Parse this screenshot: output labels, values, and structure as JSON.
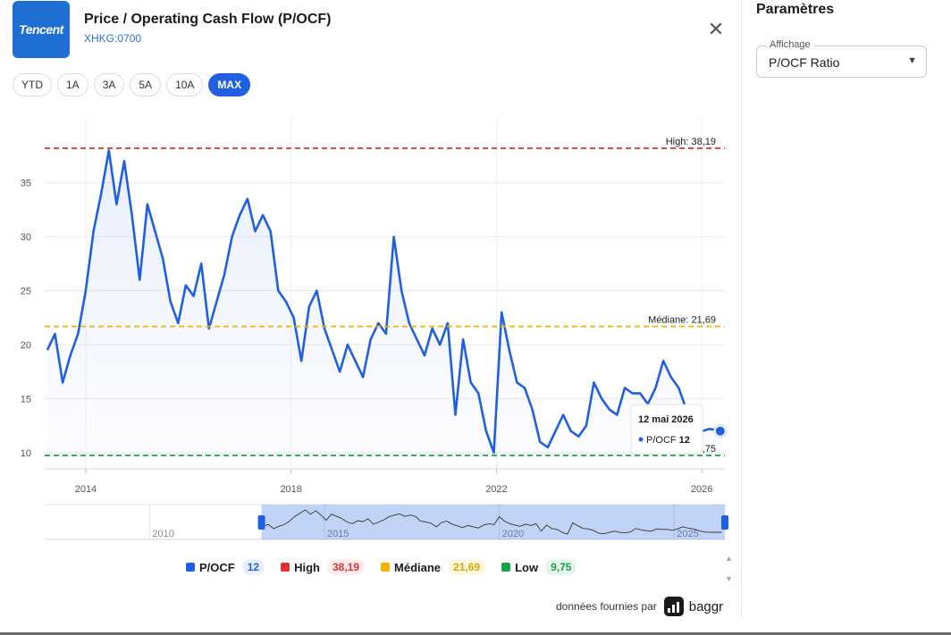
{
  "header": {
    "logo_text": "Tencent",
    "title": "Price / Operating Cash Flow (P/OCF)",
    "ticker": "XHKG:0700",
    "close_icon": "close-icon"
  },
  "ranges": [
    {
      "label": "YTD",
      "active": false
    },
    {
      "label": "1A",
      "active": false
    },
    {
      "label": "3A",
      "active": false
    },
    {
      "label": "5A",
      "active": false
    },
    {
      "label": "10A",
      "active": false
    },
    {
      "label": "MAX",
      "active": true
    }
  ],
  "chart_data": {
    "type": "area",
    "title": "",
    "xlabel": "",
    "ylabel": "",
    "xlim": [
      2013.2,
      2026.45
    ],
    "ylim": [
      8.5,
      41
    ],
    "x_ticks": [
      "2014",
      "2018",
      "2022",
      "2026"
    ],
    "y_ticks": [
      10,
      15,
      20,
      25,
      30,
      35
    ],
    "grid": true,
    "series": [
      {
        "name": "P/OCF",
        "color": "#2060e0",
        "x": [
          2013.25,
          2013.4,
          2013.55,
          2013.7,
          2013.85,
          2014.0,
          2014.15,
          2014.3,
          2014.45,
          2014.6,
          2014.75,
          2014.9,
          2015.05,
          2015.2,
          2015.35,
          2015.5,
          2015.65,
          2015.8,
          2015.95,
          2016.1,
          2016.25,
          2016.4,
          2016.55,
          2016.7,
          2016.85,
          2017.0,
          2017.15,
          2017.3,
          2017.45,
          2017.6,
          2017.75,
          2017.9,
          2018.05,
          2018.2,
          2018.35,
          2018.5,
          2018.65,
          2018.8,
          2018.95,
          2019.1,
          2019.25,
          2019.4,
          2019.55,
          2019.7,
          2019.85,
          2020.0,
          2020.15,
          2020.3,
          2020.45,
          2020.6,
          2020.75,
          2020.9,
          2021.05,
          2021.2,
          2021.35,
          2021.5,
          2021.65,
          2021.8,
          2021.95,
          2022.1,
          2022.25,
          2022.4,
          2022.55,
          2022.7,
          2022.85,
          2023.0,
          2023.15,
          2023.3,
          2023.45,
          2023.6,
          2023.75,
          2023.9,
          2024.05,
          2024.2,
          2024.35,
          2024.5,
          2024.65,
          2024.8,
          2024.95,
          2025.1,
          2025.25,
          2025.4,
          2025.55,
          2025.7,
          2025.85,
          2026.0,
          2026.15,
          2026.3,
          2026.36
        ],
        "y": [
          19.5,
          21.0,
          16.5,
          19.0,
          21.0,
          25.0,
          30.5,
          34.0,
          38.0,
          33.0,
          37.0,
          32.0,
          26.0,
          33.0,
          30.5,
          28.0,
          24.0,
          22.0,
          25.5,
          24.5,
          27.5,
          21.5,
          24.0,
          26.5,
          30.0,
          32.0,
          33.5,
          30.5,
          32.0,
          30.5,
          25.0,
          24.0,
          22.5,
          18.5,
          23.5,
          25.0,
          21.5,
          19.5,
          17.5,
          20.0,
          18.5,
          17.0,
          20.5,
          22.0,
          21.0,
          30.0,
          25.0,
          22.0,
          20.5,
          19.0,
          21.5,
          20.0,
          22.0,
          13.5,
          20.5,
          16.5,
          15.5,
          12.0,
          10.0,
          23.0,
          19.5,
          16.5,
          16.0,
          14.0,
          11.0,
          10.5,
          12.0,
          13.5,
          12.0,
          11.5,
          12.5,
          16.5,
          15.0,
          14.0,
          13.5,
          16.0,
          15.5,
          15.5,
          14.5,
          16.0,
          18.5,
          17.0,
          16.0,
          14.0,
          12.5,
          12.0,
          12.2,
          12.1,
          12.0
        ]
      }
    ],
    "reference_lines": [
      {
        "name": "High",
        "value": 38.19,
        "label": "High: 38,19",
        "color": "#e03131"
      },
      {
        "name": "Médiane",
        "value": 21.69,
        "label": "Médiane: 21,69",
        "color": "#f0b400"
      },
      {
        "name": "Low",
        "value": 9.75,
        "label": "Low: 9,75",
        "color": "#16a34a"
      }
    ],
    "tooltip": {
      "date": "12 mai 2026",
      "series": "P/OCF",
      "value": "12"
    },
    "navigator": {
      "x_ticks": [
        "2010",
        "2015",
        "2020",
        "2025"
      ],
      "selected_range": [
        2013.2,
        2026.45
      ],
      "full_range": [
        2007.0,
        2026.45
      ]
    }
  },
  "legend": [
    {
      "name": "P/OCF",
      "value": "12",
      "color": "#2060e0",
      "bg": "#e8efff",
      "text_color": "#2060e0"
    },
    {
      "name": "High",
      "value": "38,19",
      "color": "#e03131",
      "bg": "#fdecec",
      "text_color": "#e03131"
    },
    {
      "name": "Médiane",
      "value": "21,69",
      "color": "#f0b400",
      "bg": "#fdf6e0",
      "text_color": "#d9a300"
    },
    {
      "name": "Low",
      "value": "9,75",
      "color": "#16a34a",
      "bg": "#e7f6ec",
      "text_color": "#16a34a"
    }
  ],
  "credit": {
    "text": "données fournies par",
    "brand": "baggr"
  },
  "side": {
    "title": "Paramètres",
    "select_label": "Affichage",
    "select_value": "P/OCF Ratio"
  }
}
